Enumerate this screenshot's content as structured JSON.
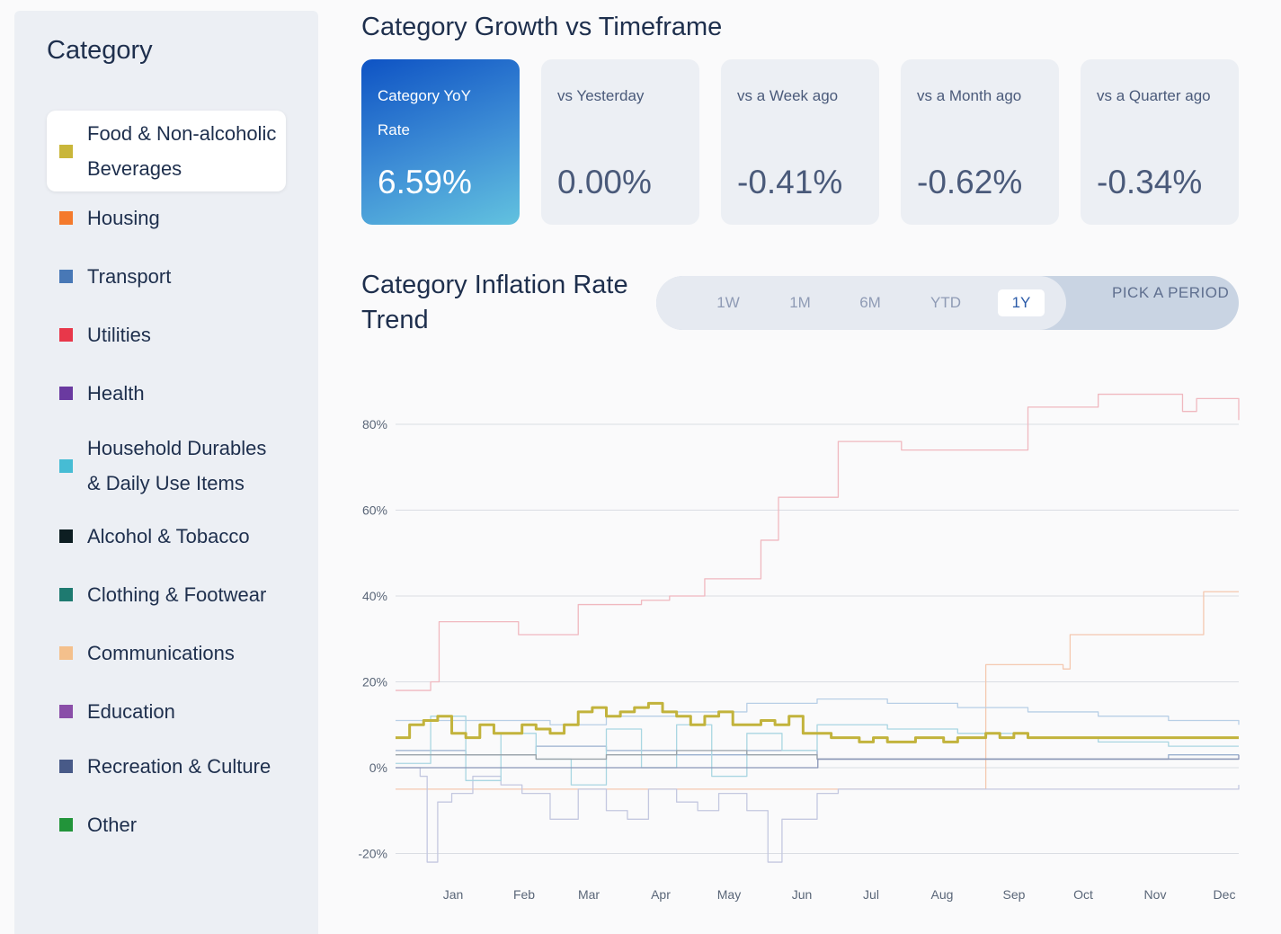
{
  "sidebar": {
    "title": "Category",
    "items": [
      {
        "label": "Food & Non-alcoholic Beverages",
        "color": "#c9b63a",
        "active": true
      },
      {
        "label": "Housing",
        "color": "#f47a2c"
      },
      {
        "label": "Transport",
        "color": "#4878b6"
      },
      {
        "label": "Utilities",
        "color": "#e8374a"
      },
      {
        "label": "Health",
        "color": "#6a3aa0"
      },
      {
        "label": "Household Durables & Daily Use Items",
        "color": "#46bcd4"
      },
      {
        "label": "Alcohol & Tobacco",
        "color": "#0d1e22"
      },
      {
        "label": "Clothing & Footwear",
        "color": "#1e7a70"
      },
      {
        "label": "Communications",
        "color": "#f4c08c"
      },
      {
        "label": "Education",
        "color": "#8a4ea8"
      },
      {
        "label": "Recreation & Culture",
        "color": "#485a88"
      },
      {
        "label": "Other",
        "color": "#22943a"
      }
    ]
  },
  "main": {
    "title": "Category Growth vs Timeframe",
    "cards": [
      {
        "label": "Category YoY Rate",
        "value": "6.59%"
      },
      {
        "label": "vs Yesterday",
        "value": "0.00%"
      },
      {
        "label": "vs a Week ago",
        "value": "-0.41%"
      },
      {
        "label": "vs a Month ago",
        "value": "-0.62%"
      },
      {
        "label": "vs a Quarter ago",
        "value": "-0.34%"
      }
    ]
  },
  "trend": {
    "title": "Category Inflation Rate Trend",
    "periods": [
      "1W",
      "1M",
      "6M",
      "YTD",
      "1Y"
    ],
    "active_period": "1Y",
    "pick_label": "PICK A PERIOD"
  },
  "chart_data": {
    "type": "line",
    "title": "",
    "xlabel": "",
    "ylabel": "",
    "x_ticks": [
      "Jan",
      "Feb",
      "Mar",
      "Apr",
      "May",
      "Jun",
      "Jul",
      "Aug",
      "Sep",
      "Oct",
      "Nov",
      "Dec"
    ],
    "y_ticks": [
      "-20%",
      "0%",
      "20%",
      "40%",
      "60%",
      "80%"
    ],
    "ylim": [
      -24,
      88
    ],
    "xlim": [
      0,
      12
    ],
    "grid": true,
    "highlighted_series": "Food & Non-alcoholic Beverages",
    "series": [
      {
        "name": "Housing",
        "color": "#f0b8bf",
        "x": [
          0,
          0.5,
          0.62,
          1.6,
          1.75,
          2.5,
          2.6,
          3.5,
          3.9,
          4.4,
          5.2,
          5.45,
          6.3,
          7.0,
          7.2,
          8.0,
          9.0,
          10.0,
          10.8,
          11.2,
          11.4,
          12
        ],
        "y": [
          18,
          20,
          34,
          34,
          31,
          31,
          38,
          39,
          40,
          44,
          53,
          63,
          76,
          76,
          74,
          74,
          84,
          87,
          87,
          83,
          86,
          81
        ]
      },
      {
        "name": "Communications",
        "color": "#f4c8b0",
        "x": [
          0,
          8.3,
          8.4,
          9.5,
          9.6,
          10.6,
          10.7,
          11.45,
          11.5,
          12
        ],
        "y": [
          -5,
          -5,
          24,
          23,
          31,
          31,
          31,
          31,
          41,
          41
        ]
      },
      {
        "name": "Household Durables & Daily Use Items",
        "color": "#b8cfe6",
        "x": [
          0,
          1,
          1.6,
          2.2,
          3,
          4,
          5,
          6,
          7,
          8,
          9,
          10,
          11,
          12
        ],
        "y": [
          11,
          11,
          11,
          10,
          12,
          13,
          15,
          16,
          15,
          14,
          13,
          12,
          11,
          10
        ]
      },
      {
        "name": "Health",
        "color": "#c4c8e0",
        "x": [
          0,
          0.35,
          0.45,
          0.6,
          0.8,
          1.1,
          1.5,
          1.8,
          2.2,
          2.6,
          3.0,
          3.3,
          3.6,
          4.0,
          4.3,
          4.6,
          5.0,
          5.3,
          5.5,
          6.0,
          6.3,
          7,
          8,
          9,
          10,
          11,
          12
        ],
        "y": [
          0,
          -2,
          -22,
          -8,
          -6,
          -2,
          -4,
          -6,
          -12,
          -5,
          -10,
          -12,
          -5,
          -8,
          -10,
          -6,
          -10,
          -22,
          -12,
          -6,
          -5,
          -5,
          -5,
          -5,
          -5,
          -5,
          -4
        ]
      },
      {
        "name": "Transport",
        "color": "#9ab0cf",
        "x": [
          0,
          1,
          2,
          3,
          4,
          5,
          6,
          7,
          8,
          9,
          10,
          11,
          12
        ],
        "y": [
          4,
          3,
          5,
          4,
          3,
          4,
          2,
          2,
          2,
          2,
          2,
          3,
          3
        ]
      },
      {
        "name": "Food & Non-alcoholic Beverages",
        "color": "#c2b33c",
        "x": [
          0,
          0.2,
          0.4,
          0.6,
          0.8,
          1.0,
          1.2,
          1.4,
          1.6,
          1.8,
          2.0,
          2.2,
          2.4,
          2.6,
          2.8,
          3.0,
          3.2,
          3.4,
          3.6,
          3.8,
          4.0,
          4.2,
          4.4,
          4.6,
          4.8,
          5.0,
          5.2,
          5.4,
          5.6,
          5.8,
          6.0,
          6.2,
          6.4,
          6.6,
          6.8,
          7.0,
          7.2,
          7.4,
          7.6,
          7.8,
          8.0,
          8.2,
          8.4,
          8.6,
          8.8,
          9.0,
          9.2,
          9.4,
          9.6,
          9.8,
          10.0,
          10.2,
          10.4,
          10.6,
          10.8,
          11.0,
          11.2,
          11.4,
          11.6,
          11.8,
          12.0
        ],
        "y": [
          7,
          10,
          11,
          12,
          8,
          7,
          10,
          8,
          8,
          10,
          9,
          8,
          10,
          13,
          14,
          12,
          13,
          14,
          15,
          13,
          12,
          10,
          12,
          13,
          10,
          10,
          11,
          10,
          12,
          8,
          8,
          7,
          7,
          6,
          7,
          6,
          6,
          7,
          7,
          6,
          7,
          7,
          8,
          7,
          8,
          7,
          7,
          7,
          7,
          7,
          7,
          7,
          7,
          7,
          7,
          7,
          7,
          7,
          7,
          7,
          7
        ]
      },
      {
        "name": "Utilities",
        "color": "#a9d6e2",
        "x": [
          0,
          0.5,
          1.0,
          1.5,
          2.0,
          2.5,
          3.0,
          3.5,
          4.0,
          4.5,
          5.0,
          5.5,
          6.0,
          7,
          8,
          9,
          10,
          11,
          12
        ],
        "y": [
          1,
          12,
          -3,
          8,
          2,
          -4,
          9,
          0,
          10,
          -2,
          8,
          4,
          10,
          9,
          8,
          7,
          6,
          5,
          5
        ]
      },
      {
        "name": "Alcohol & Tobacco",
        "color": "#9aa3aa",
        "x": [
          0,
          1,
          2,
          3,
          4,
          5,
          6,
          7,
          8,
          9,
          10,
          11,
          12
        ],
        "y": [
          3,
          3,
          2,
          3,
          4,
          3,
          2,
          2,
          2,
          2,
          2,
          2,
          2
        ]
      },
      {
        "name": "Recreation & Culture",
        "color": "#8a96b8",
        "x": [
          0,
          6,
          6.01,
          12
        ],
        "y": [
          0,
          0,
          2,
          3
        ]
      }
    ]
  }
}
